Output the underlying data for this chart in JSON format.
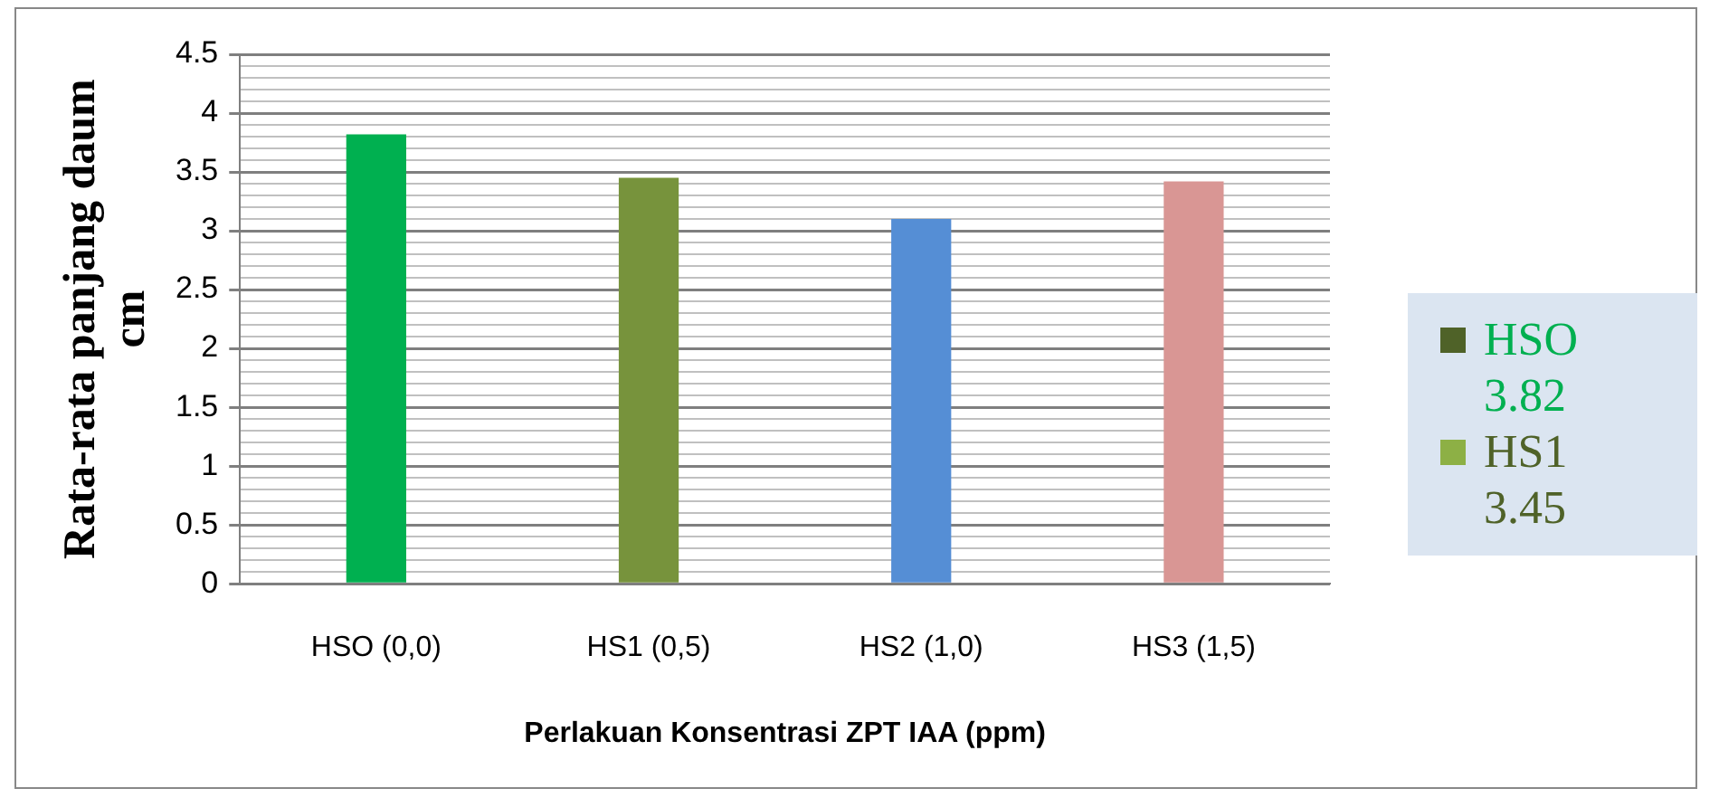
{
  "chart_data": {
    "type": "bar",
    "xlabel": "Perlakuan Konsentrasi ZPT IAA (ppm)",
    "ylabel": "Rata-rata panjang daum cm",
    "categories": [
      "HSO (0,0)",
      "HS1 (0,5)",
      "HS2 (1,0)",
      "HS3 (1,5)"
    ],
    "values": [
      3.82,
      3.45,
      3.1,
      3.42
    ],
    "colors": [
      "#00b050",
      "#77933c",
      "#558ed5",
      "#d99694"
    ],
    "ylim": [
      0,
      4.5
    ],
    "yticks": [
      0,
      {
        "value": 0.1,
        "label": null
      },
      {
        "value": 0.2,
        "label": null
      },
      {
        "value": 0.3,
        "label": null
      },
      {
        "value": 0.4,
        "label": null
      },
      0.5,
      {
        "value": 0.6,
        "label": null
      },
      {
        "value": 0.7,
        "label": null
      },
      {
        "value": 0.8,
        "label": null
      },
      {
        "value": 0.9,
        "label": null
      },
      1,
      {
        "value": 1.1,
        "label": null
      },
      {
        "value": 1.2,
        "label": null
      },
      {
        "value": 1.3,
        "label": null
      },
      {
        "value": 1.4,
        "label": null
      },
      1.5,
      {
        "value": 1.6,
        "label": null
      },
      {
        "value": 1.7,
        "label": null
      },
      {
        "value": 1.8,
        "label": null
      },
      {
        "value": 1.9,
        "label": null
      },
      2,
      {
        "value": 2.1,
        "label": null
      },
      {
        "value": 2.2,
        "label": null
      },
      {
        "value": 2.3,
        "label": null
      },
      {
        "value": 2.4,
        "label": null
      },
      2.5,
      {
        "value": 2.6,
        "label": null
      },
      {
        "value": 2.7,
        "label": null
      },
      {
        "value": 2.8,
        "label": null
      },
      {
        "value": 2.9,
        "label": null
      },
      3,
      {
        "value": 3.1,
        "label": null
      },
      {
        "value": 3.2,
        "label": null
      },
      {
        "value": 3.3,
        "label": null
      },
      {
        "value": 3.4,
        "label": null
      },
      3.5,
      {
        "value": 3.6,
        "label": null
      },
      {
        "value": 3.7,
        "label": null
      },
      {
        "value": 3.8,
        "label": null
      },
      {
        "value": 3.9,
        "label": null
      },
      4,
      {
        "value": 4.1,
        "label": null
      },
      {
        "value": 4.2,
        "label": null
      },
      {
        "value": 4.3,
        "label": null
      },
      {
        "value": 4.4,
        "label": null
      },
      4.5
    ],
    "grid": true,
    "legend": false,
    "annotations": [
      "HSO 3.82",
      "HS1 3.45"
    ]
  }
}
